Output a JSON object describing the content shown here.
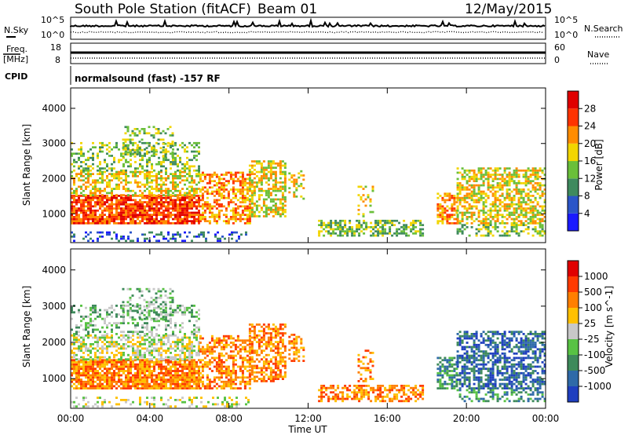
{
  "header": {
    "station": "South Pole Station (fitACF)",
    "beam": "Beam 01",
    "date": "12/May/2015"
  },
  "panels": {
    "nsky_label": "N.Sky",
    "nsky_ticks": [
      "10^5",
      "10^0"
    ],
    "nsearch_label": "N.Search",
    "nsearch_ticks": [
      "10^5",
      "10^0"
    ],
    "freq_label_1": "Freq.",
    "freq_label_2": "[MHz]",
    "freq_ticks": [
      "18",
      "8"
    ],
    "nave_label": "Nave",
    "nave_ticks": [
      "60",
      "0"
    ],
    "cpid_label": "CPID",
    "cpid_text": "normalsound (fast) -157 RF"
  },
  "chart_data": [
    {
      "type": "heatmap",
      "name": "power",
      "ylabel": "Slant Range [km]",
      "yticks": [
        "4000",
        "3000",
        "2000",
        "1000"
      ],
      "ylim": [
        180,
        4580
      ],
      "xlim": [
        0,
        24
      ],
      "colorbar_label": "Power [dB]",
      "colorbar_ticks": [
        "28",
        "24",
        "20",
        "16",
        "12",
        "8",
        "4"
      ],
      "colorbar_colors": [
        "#1a1aff",
        "#2b55c8",
        "#3f8a5e",
        "#6abf3a",
        "#f2d500",
        "#ff8c00",
        "#ff3300",
        "#e00000"
      ]
    },
    {
      "type": "heatmap",
      "name": "velocity",
      "ylabel": "Slant Range [km]",
      "yticks": [
        "4000",
        "3000",
        "2000",
        "1000"
      ],
      "ylim": [
        180,
        4580
      ],
      "xlim": [
        0,
        24
      ],
      "colorbar_label": "Velocity [m s^-1]",
      "colorbar_ticks": [
        "1000",
        "500",
        "100",
        "25",
        "-25",
        "-100",
        "-500",
        "-1000"
      ],
      "colorbar_colors": [
        "#1f3fbf",
        "#2f6aa8",
        "#3e8a5b",
        "#58c244",
        "#c8c8c8",
        "#ffc000",
        "#ff7f00",
        "#ff3a00",
        "#e00000"
      ]
    }
  ],
  "xaxis": {
    "ticks": [
      "00:00",
      "04:00",
      "08:00",
      "12:00",
      "16:00",
      "20:00",
      "00:00"
    ],
    "label": "Time UT"
  },
  "colors": {
    "bg": "#ffffff",
    "ink": "#000000"
  }
}
